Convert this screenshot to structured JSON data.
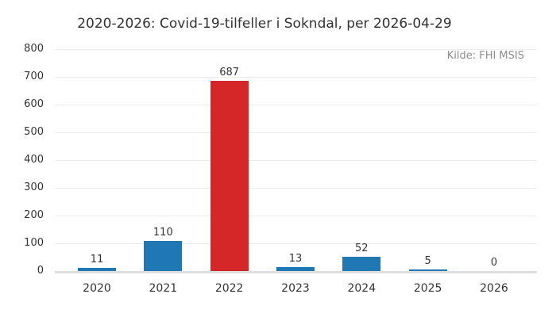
{
  "chart_data": {
    "type": "bar",
    "title": "2020-2026: Covid-19-tilfeller i Sokndal, per 2026-04-29",
    "annotation": "Kilde: FHI MSIS",
    "categories": [
      "2020",
      "2021",
      "2022",
      "2023",
      "2024",
      "2025",
      "2026"
    ],
    "values": [
      11,
      110,
      687,
      13,
      52,
      5,
      0
    ],
    "bar_colors": [
      "#1f77b4",
      "#1f77b4",
      "#d62728",
      "#1f77b4",
      "#1f77b4",
      "#1f77b4",
      "#1f77b4"
    ],
    "highlighted_category": "2022",
    "xlabel": "",
    "ylabel": "",
    "ylim": [
      0,
      800
    ],
    "yticks": [
      0,
      100,
      200,
      300,
      400,
      500,
      600,
      700,
      800
    ],
    "grid": "horizontal",
    "legend": "none",
    "colors": {
      "bar_default": "#1f77b4",
      "bar_highlight": "#d62728",
      "gridline": "#ebebeb",
      "axis_baseline": "#dedede",
      "text": "#333333",
      "source_text": "#8c8c8c",
      "background": "#ffffff"
    }
  }
}
